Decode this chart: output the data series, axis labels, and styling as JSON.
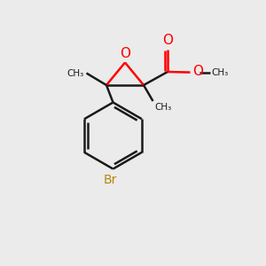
{
  "bg_color": "#ebebeb",
  "bond_color": "#1a1a1a",
  "oxygen_color": "#ff0000",
  "bromine_color": "#b8860b",
  "line_width": 1.8,
  "figsize": [
    3.0,
    3.0
  ],
  "dpi": 100,
  "xlim": [
    0,
    10
  ],
  "ylim": [
    0,
    10
  ]
}
